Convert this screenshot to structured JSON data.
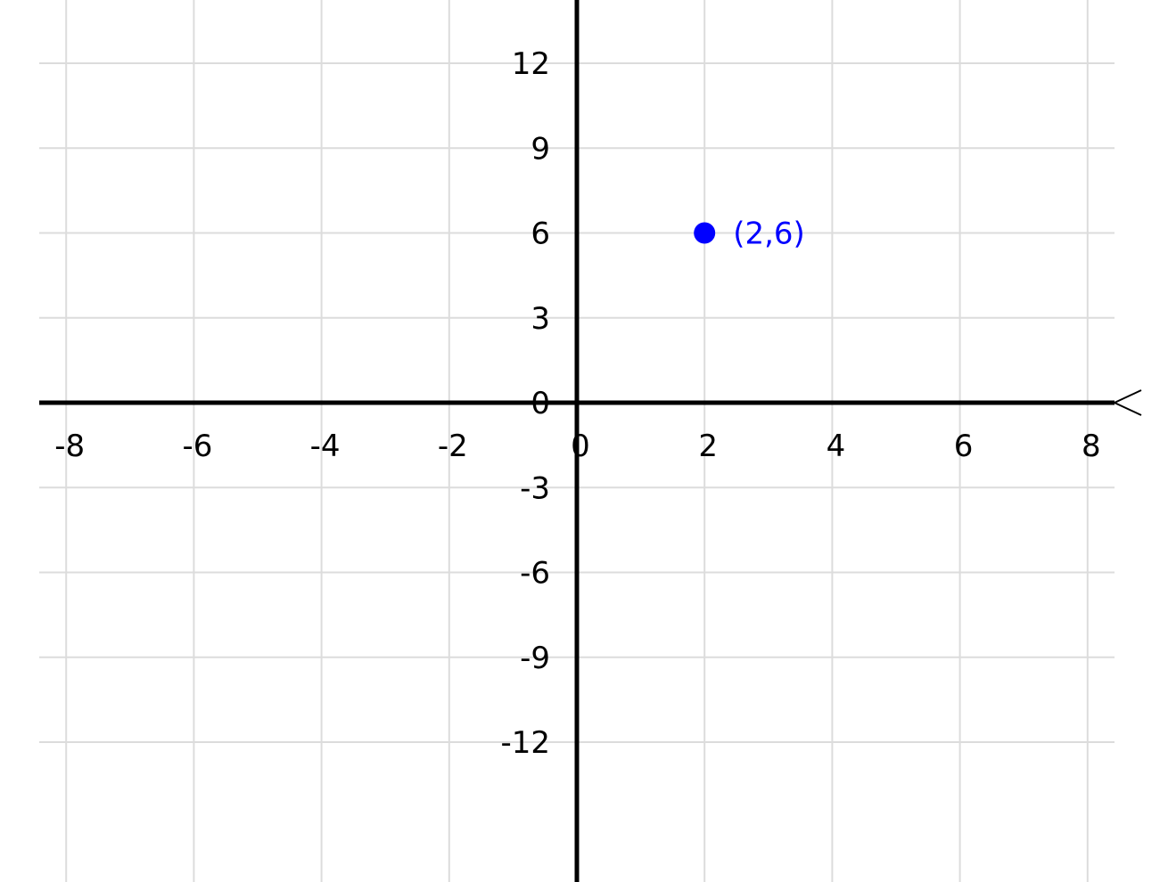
{
  "chart_data": {
    "type": "scatter",
    "title": "",
    "xlabel": "",
    "ylabel": "",
    "grid": true,
    "xlim": [
      -8.4,
      8.4
    ],
    "ylim": [
      -14.25,
      14.25
    ],
    "x_ticks": [
      -8,
      -6,
      -4,
      -2,
      0,
      2,
      4,
      6,
      8
    ],
    "x_tick_labels": [
      "-8",
      "-6",
      "-4",
      "-2",
      "0",
      "2",
      "4",
      "6",
      "8"
    ],
    "y_ticks": [
      12,
      9,
      6,
      3,
      0,
      -3,
      -6,
      -9,
      -12
    ],
    "y_tick_labels": [
      "12",
      "9",
      "6",
      "3",
      "0",
      "-3",
      "-6",
      "-9",
      "-12"
    ],
    "series": [
      {
        "points": [
          {
            "x": 2,
            "y": 6,
            "label": "(2,6)"
          }
        ],
        "color": "#0000ff"
      }
    ],
    "colors": {
      "axis": "#000000",
      "grid": "#dcdcdc",
      "point": "#0000ff"
    }
  }
}
